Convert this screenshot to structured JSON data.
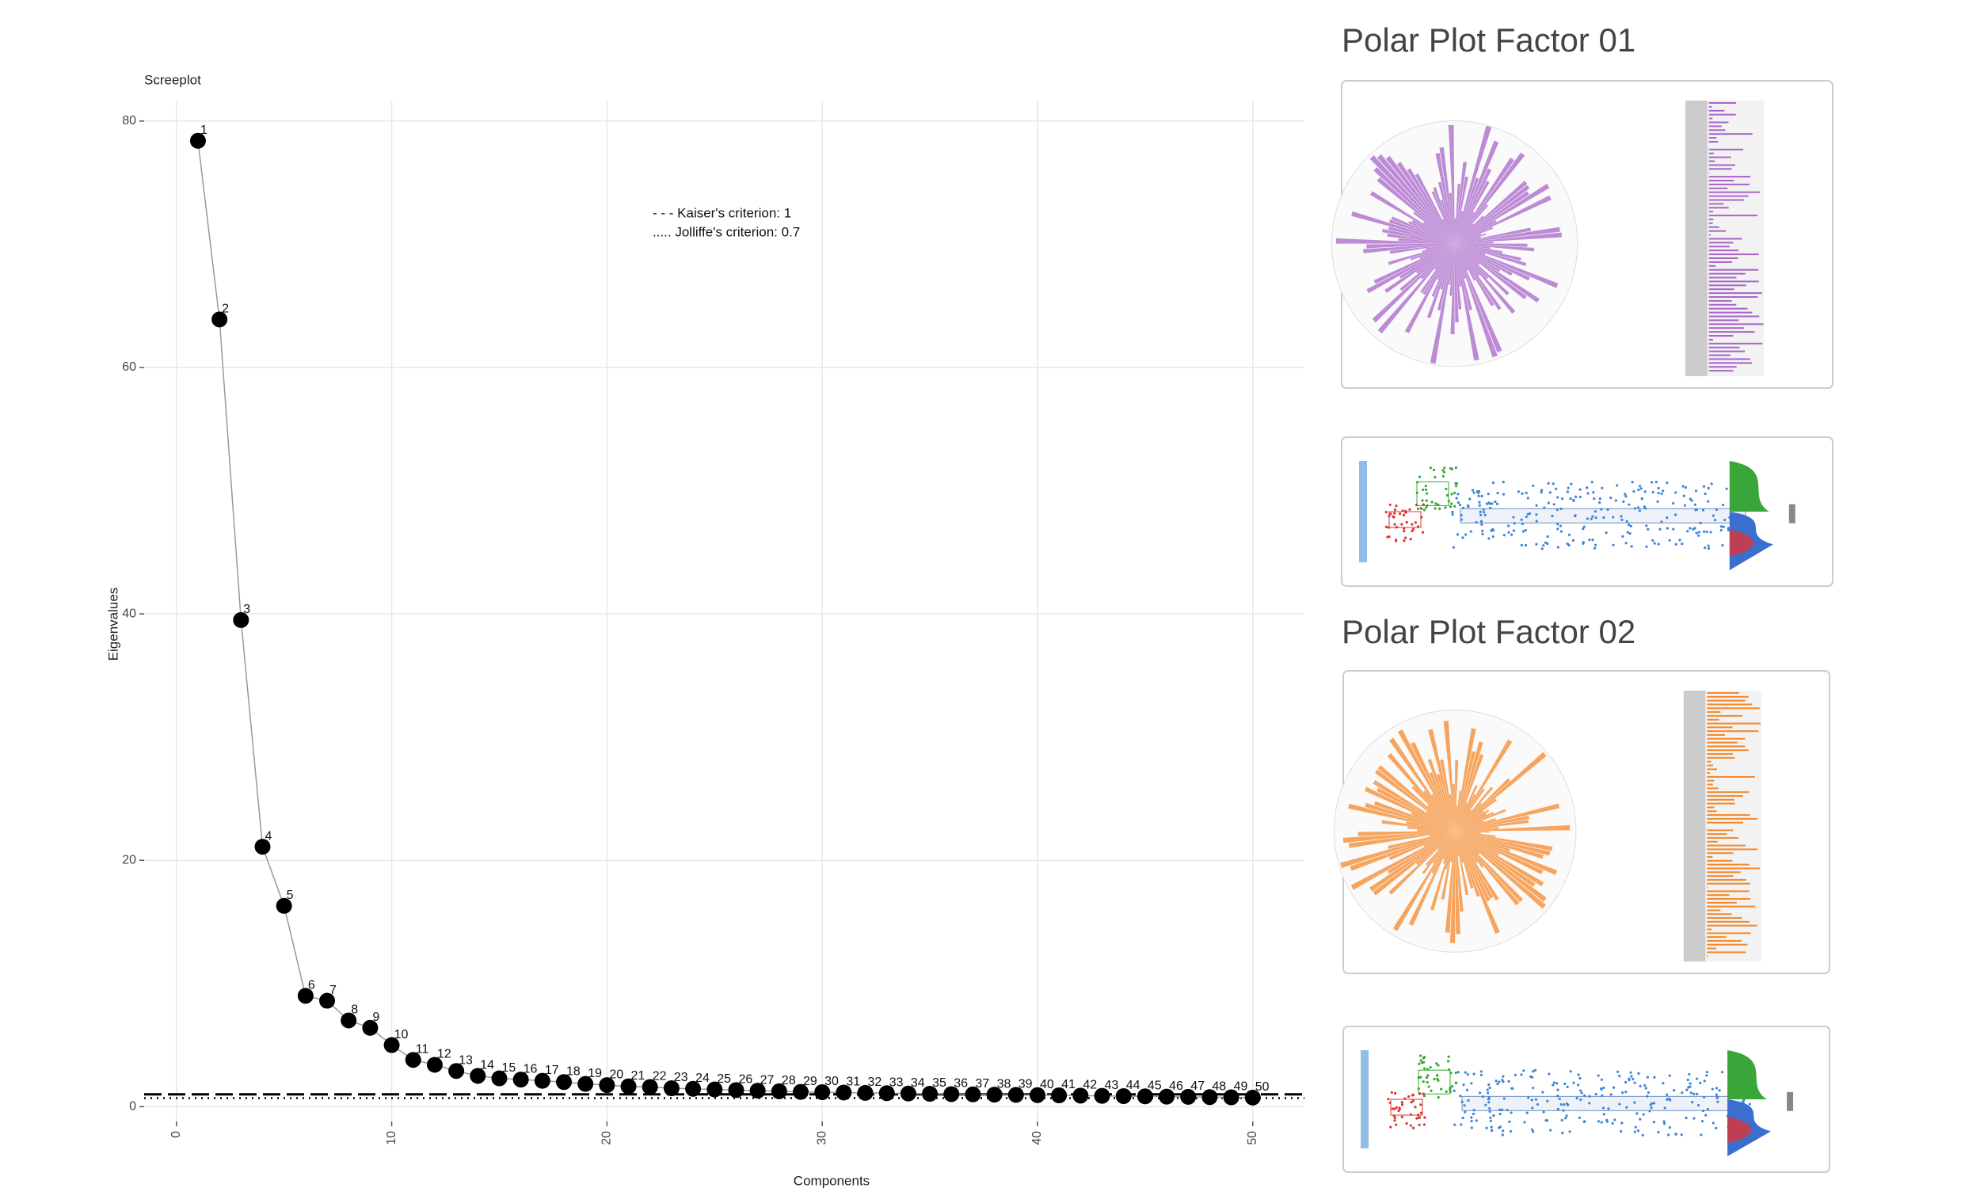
{
  "chart_data": {
    "type": "scatter",
    "title": "Screeplot",
    "x_label": "Components",
    "y_label": "Eigenvalues",
    "x": [
      1,
      2,
      3,
      4,
      5,
      6,
      7,
      8,
      9,
      10,
      11,
      12,
      13,
      14,
      15,
      16,
      17,
      18,
      19,
      20,
      21,
      22,
      23,
      24,
      25,
      26,
      27,
      28,
      29,
      30,
      31,
      32,
      33,
      34,
      35,
      36,
      37,
      38,
      39,
      40,
      41,
      42,
      43,
      44,
      45,
      46,
      47,
      48,
      49,
      50
    ],
    "values": [
      78.4,
      63.9,
      39.5,
      21.1,
      16.3,
      9.0,
      8.6,
      7.0,
      6.4,
      5.0,
      3.8,
      3.4,
      2.9,
      2.5,
      2.3,
      2.2,
      2.1,
      2.0,
      1.85,
      1.75,
      1.65,
      1.6,
      1.5,
      1.45,
      1.4,
      1.35,
      1.3,
      1.25,
      1.2,
      1.18,
      1.15,
      1.12,
      1.1,
      1.07,
      1.05,
      1.02,
      1.0,
      0.98,
      0.96,
      0.94,
      0.92,
      0.9,
      0.88,
      0.86,
      0.84,
      0.82,
      0.8,
      0.78,
      0.76,
      0.74
    ],
    "color": "#000000",
    "xlim": [
      -1.5,
      52.4
    ],
    "ylim": [
      -1.2,
      81.6
    ],
    "xticks": [
      0,
      10,
      20,
      30,
      40,
      50
    ],
    "yticks": [
      0,
      20,
      40,
      60,
      80
    ],
    "grid": true,
    "hlines": [
      {
        "value": 1,
        "style": "dashed",
        "label": "- - - Kaiser's criterion: 1"
      },
      {
        "value": 0.7,
        "style": "dotted",
        "label": "..... Jolliffe's criterion: 0.7"
      }
    ]
  },
  "panels": [
    {
      "title": "Polar Plot Factor 01",
      "color": "#a865c9"
    },
    {
      "title": "Polar Plot Factor 02",
      "color": "#f5882a"
    }
  ]
}
